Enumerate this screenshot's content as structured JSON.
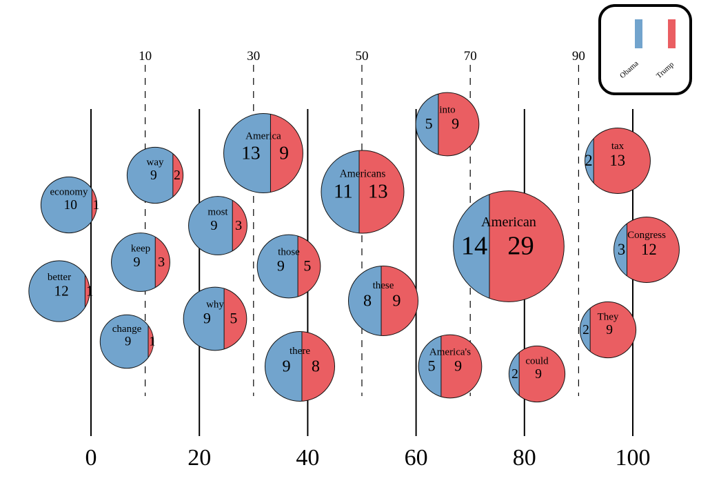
{
  "chart_data": {
    "type": "bubble",
    "series": [
      {
        "name": "Obama",
        "color": "#72a4cd"
      },
      {
        "name": "Trump",
        "color": "#ea5e62"
      }
    ],
    "x_axis": {
      "range": [
        0,
        100
      ],
      "major_ticks": [
        "0",
        "20",
        "40",
        "60",
        "80",
        "100"
      ],
      "minor_ticks": [
        "10",
        "30",
        "50",
        "70",
        "90"
      ]
    },
    "bubbles": [
      {
        "word": "economy",
        "x": 0,
        "obama": 10,
        "trump": 1
      },
      {
        "word": "better",
        "x": 0,
        "obama": 12,
        "trump": 1
      },
      {
        "word": "way",
        "x": 10,
        "obama": 9,
        "trump": 2
      },
      {
        "word": "keep",
        "x": 10,
        "obama": 9,
        "trump": 3
      },
      {
        "word": "change",
        "x": 10,
        "obama": 9,
        "trump": 1
      },
      {
        "word": "America",
        "x": 30,
        "obama": 13,
        "trump": 9
      },
      {
        "word": "most",
        "x": 20,
        "obama": 9,
        "trump": 3
      },
      {
        "word": "why",
        "x": 20,
        "obama": 9,
        "trump": 5
      },
      {
        "word": "those",
        "x": 40,
        "obama": 9,
        "trump": 5
      },
      {
        "word": "there",
        "x": 40,
        "obama": 9,
        "trump": 8
      },
      {
        "word": "Americans",
        "x": 50,
        "obama": 11,
        "trump": 13
      },
      {
        "word": "these",
        "x": 50,
        "obama": 8,
        "trump": 9
      },
      {
        "word": "into",
        "x": 60,
        "obama": 5,
        "trump": 9
      },
      {
        "word": "America's",
        "x": 60,
        "obama": 5,
        "trump": 9
      },
      {
        "word": "American",
        "x": 70,
        "obama": 14,
        "trump": 29
      },
      {
        "word": "could",
        "x": 80,
        "obama": 2,
        "trump": 9
      },
      {
        "word": "tax",
        "x": 90,
        "obama": 2,
        "trump": 13
      },
      {
        "word": "They",
        "x": 90,
        "obama": 2,
        "trump": 9
      },
      {
        "word": "Congress",
        "x": 100,
        "obama": 3,
        "trump": 12
      }
    ],
    "legend": {
      "placement": "top-right",
      "entries": [
        "Obama",
        "Trump"
      ]
    }
  }
}
